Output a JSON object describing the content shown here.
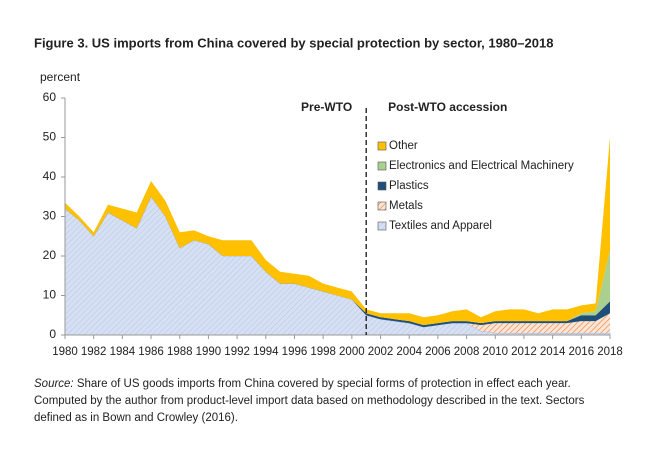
{
  "chart_data": {
    "type": "stacked_area",
    "title": "Figure 3. US imports from China covered by special protection by sector, 1980–2018",
    "y_label": "percent",
    "annotations": {
      "left": "Pre-WTO",
      "right": "Post-WTO accession"
    },
    "divider_x": 2001,
    "x": [
      1980,
      1981,
      1982,
      1983,
      1984,
      1985,
      1986,
      1987,
      1988,
      1989,
      1990,
      1991,
      1992,
      1993,
      1994,
      1995,
      1996,
      1997,
      1998,
      1999,
      2000,
      2001,
      2002,
      2003,
      2004,
      2005,
      2006,
      2007,
      2008,
      2009,
      2010,
      2011,
      2012,
      2013,
      2014,
      2015,
      2016,
      2017,
      2018
    ],
    "xlim": [
      1980,
      2018
    ],
    "xticks": [
      1980,
      1982,
      1984,
      1986,
      1988,
      1990,
      1992,
      1994,
      1996,
      1998,
      2000,
      2002,
      2004,
      2006,
      2008,
      2010,
      2012,
      2014,
      2016,
      2018
    ],
    "ylim": [
      0,
      60
    ],
    "yticks": [
      0,
      10,
      20,
      30,
      40,
      50,
      60
    ],
    "series": [
      {
        "name": "Textiles and Apparel",
        "color": "#d6e0f2",
        "values": [
          32,
          29,
          25,
          31,
          29,
          27,
          35,
          30,
          22,
          24,
          23,
          20,
          20,
          20,
          16,
          13,
          13,
          12,
          11,
          10,
          9,
          5,
          4,
          3.5,
          3,
          2,
          2.5,
          3,
          3,
          1,
          0.5,
          0.5,
          0.5,
          0.5,
          0.5,
          0.5,
          0.5,
          0.5,
          0.5
        ]
      },
      {
        "name": "Metals",
        "color": "#f4b183",
        "values": [
          0,
          0,
          0,
          0,
          0,
          0,
          0,
          0,
          0,
          0,
          0,
          0,
          0,
          0,
          0,
          0,
          0,
          0,
          0,
          0,
          0,
          0,
          0,
          0,
          0,
          0,
          0,
          0,
          0,
          1.5,
          2.5,
          2.5,
          2.5,
          2.5,
          2.5,
          2.5,
          3,
          3,
          5
        ]
      },
      {
        "name": "Plastics",
        "color": "#1f4e79",
        "values": [
          0,
          0,
          0,
          0,
          0,
          0,
          0,
          0,
          0,
          0,
          0,
          0,
          0,
          0,
          0,
          0,
          0,
          0,
          0,
          0,
          0,
          0.5,
          0.5,
          0.5,
          0.5,
          0.5,
          0.5,
          0.5,
          0.5,
          0.5,
          0.5,
          0.5,
          0.5,
          0.5,
          0.5,
          0.5,
          1.5,
          1.5,
          3
        ]
      },
      {
        "name": "Electronics and Electrical Machinery",
        "color": "#a9d08e",
        "values": [
          0,
          0,
          0,
          0,
          0,
          0,
          0,
          0,
          0,
          0,
          0,
          0,
          0,
          0,
          0,
          0,
          0,
          0,
          0,
          0,
          0,
          0,
          0,
          0,
          0,
          0,
          0,
          0,
          0,
          0,
          0,
          0,
          0,
          0,
          0,
          0,
          0.5,
          1,
          13
        ]
      },
      {
        "name": "Other",
        "color": "#ffc000",
        "values": [
          1.5,
          1,
          1,
          2,
          3,
          4,
          4,
          4,
          4,
          2.5,
          2,
          4,
          4,
          4,
          3,
          3,
          2.5,
          3,
          2,
          2,
          2,
          1,
          1,
          1.5,
          2,
          2,
          2,
          2.5,
          3,
          1.5,
          2.5,
          3,
          3,
          2,
          3,
          3,
          2,
          2,
          28.5
        ]
      }
    ],
    "source_label": "Source:",
    "source_text": "Share of US goods imports from China covered by special forms of protection in effect each year. Computed by the author from product-level import data based on methodology described in the text. Sectors defined as in Bown and Crowley (2016)."
  }
}
